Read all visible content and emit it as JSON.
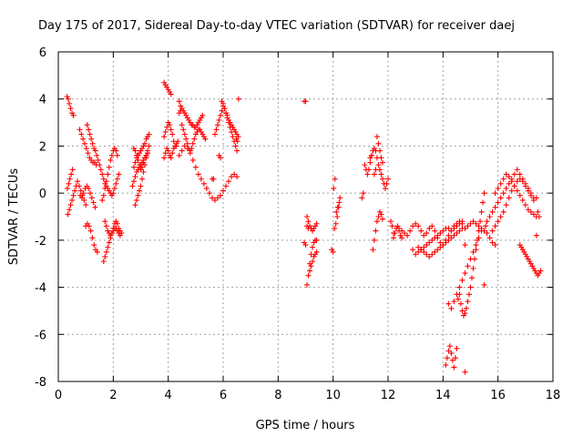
{
  "chart_data": {
    "type": "scatter",
    "title": "Day 175 of 2017, Sidereal Day-to-day VTEC variation (SDTVAR) for receiver daej",
    "xlabel": "GPS time / hours",
    "ylabel": "SDTVAR / TECUs",
    "xlim": [
      0,
      18
    ],
    "ylim": [
      -8,
      6
    ],
    "xticks": [
      0,
      2,
      4,
      6,
      8,
      10,
      12,
      14,
      16,
      18
    ],
    "yticks": [
      -8,
      -6,
      -4,
      -2,
      0,
      2,
      4,
      6
    ],
    "grid": true,
    "marker": "+",
    "color": "#ff0000",
    "series": [
      {
        "name": "SDTVAR",
        "x": [
          0.32,
          0.36,
          0.4,
          0.45,
          0.5,
          0.55,
          0.33,
          0.38,
          0.42,
          0.47,
          0.52,
          0.35,
          0.4,
          0.45,
          0.5,
          0.55,
          0.6,
          0.65,
          0.7,
          0.76,
          0.82,
          0.88,
          0.94,
          1.0,
          0.78,
          0.84,
          0.9,
          0.96,
          1.02,
          1.08,
          1.14,
          1.2,
          1.26,
          1.32,
          1.38,
          0.8,
          0.86,
          0.92,
          0.98,
          1.04,
          1.1,
          1.16,
          1.22,
          1.28,
          1.34,
          1.0,
          1.06,
          1.12,
          1.18,
          1.24,
          1.3,
          1.36,
          1.42,
          1.05,
          1.1,
          1.15,
          1.2,
          1.25,
          1.3,
          1.35,
          1.4,
          1.45,
          1.5,
          1.55,
          1.6,
          1.65,
          1.7,
          1.75,
          1.8,
          1.85,
          1.9,
          1.95,
          2.0,
          2.05,
          2.1,
          2.15,
          2.2,
          1.6,
          1.65,
          1.7,
          1.75,
          1.8,
          1.85,
          1.9,
          1.95,
          2.0,
          2.05,
          2.1,
          2.15,
          1.7,
          1.75,
          1.8,
          1.85,
          1.9,
          1.95,
          2.0,
          2.05,
          2.1,
          2.15,
          2.2,
          2.25,
          2.3,
          1.65,
          1.7,
          1.75,
          1.8,
          1.85,
          1.9,
          1.95,
          2.0,
          2.05,
          2.1,
          2.15,
          2.2,
          2.25,
          2.75,
          2.8,
          2.85,
          2.9,
          2.95,
          3.0,
          3.05,
          3.1,
          3.15,
          3.2,
          3.25,
          3.3,
          2.7,
          2.75,
          2.8,
          2.85,
          2.9,
          2.95,
          3.0,
          3.05,
          3.1,
          3.15,
          3.2,
          3.25,
          2.8,
          2.85,
          2.9,
          2.95,
          3.0,
          3.05,
          3.1,
          3.15,
          3.2,
          3.25,
          3.3,
          2.75,
          2.8,
          2.85,
          2.9,
          2.95,
          3.0,
          3.05,
          3.1,
          3.15,
          3.2,
          3.25,
          3.85,
          3.9,
          3.95,
          4.0,
          4.05,
          4.1,
          3.85,
          3.9,
          3.95,
          4.0,
          4.05,
          4.1,
          4.15,
          3.85,
          3.9,
          3.95,
          4.0,
          4.05,
          4.1,
          4.15,
          4.2,
          4.25,
          4.3,
          4.35,
          4.4,
          4.45,
          4.5,
          4.55,
          4.6,
          4.65,
          4.7,
          4.75,
          4.8,
          4.85,
          4.9,
          4.95,
          5.0,
          5.05,
          5.1,
          5.15,
          5.2,
          5.25,
          4.4,
          4.45,
          4.5,
          4.55,
          4.6,
          4.65,
          4.7,
          4.75,
          4.8,
          4.85,
          4.9,
          4.95,
          5.0,
          5.05,
          5.1,
          5.15,
          5.2,
          5.25,
          5.3,
          5.35,
          4.2,
          4.3,
          4.4,
          4.5,
          4.6,
          4.7,
          4.8,
          4.9,
          5.0,
          5.1,
          5.2,
          5.3,
          5.4,
          5.5,
          5.6,
          5.7,
          5.8,
          5.9,
          6.0,
          6.1,
          6.2,
          6.3,
          6.4,
          6.5,
          5.6,
          5.65,
          5.7,
          5.75,
          5.8,
          5.85,
          5.9,
          5.95,
          6.0,
          6.05,
          6.1,
          6.15,
          6.2,
          6.25,
          6.3,
          6.35,
          6.4,
          6.45,
          6.5,
          5.85,
          5.9,
          5.95,
          6.0,
          6.05,
          6.1,
          6.15,
          6.2,
          6.25,
          6.3,
          6.35,
          6.4,
          6.45,
          6.5,
          6.55,
          6.48,
          6.52,
          6.56,
          8.95,
          9.0,
          9.05,
          9.1,
          9.15,
          9.2,
          9.25,
          9.3,
          9.35,
          9.4,
          8.95,
          9.0,
          9.05,
          9.1,
          9.15,
          9.2,
          9.25,
          9.3,
          9.35,
          9.4,
          9.05,
          9.1,
          9.15,
          9.2,
          9.25,
          9.3,
          9.35,
          9.4,
          9.95,
          10.0,
          10.05,
          10.1,
          10.15,
          10.2,
          10.25,
          10.02,
          10.07,
          10.12,
          10.17,
          10.22,
          11.05,
          11.1,
          11.15,
          11.2,
          11.25,
          11.3,
          11.35,
          11.4,
          11.45,
          11.5,
          11.55,
          11.6,
          11.65,
          11.7,
          11.75,
          11.8,
          11.85,
          11.9,
          11.95,
          12.0,
          11.5,
          11.55,
          11.6,
          11.65,
          11.7,
          11.75,
          11.8,
          11.35,
          11.4,
          11.45,
          11.5,
          11.55,
          11.6,
          11.65,
          11.7,
          11.75,
          11.8,
          12.1,
          12.15,
          12.2,
          12.25,
          12.3,
          12.35,
          12.4,
          12.45,
          12.5,
          12.2,
          12.3,
          12.4,
          12.5,
          12.6,
          12.7,
          12.8,
          12.9,
          13.0,
          13.1,
          13.2,
          13.3,
          13.4,
          13.5,
          13.6,
          13.7,
          13.8,
          13.9,
          14.0,
          14.1,
          14.2,
          14.3,
          14.4,
          14.5,
          14.6,
          14.7,
          14.8,
          14.9,
          15.0,
          15.1,
          15.2,
          15.3,
          15.4,
          15.5,
          15.6,
          15.7,
          15.8,
          15.9,
          12.9,
          13.0,
          13.1,
          13.2,
          13.3,
          13.4,
          13.5,
          13.6,
          13.7,
          13.8,
          13.9,
          14.0,
          14.1,
          14.2,
          14.3,
          14.4,
          14.5,
          14.6,
          14.7,
          14.8,
          13.1,
          13.2,
          13.3,
          13.4,
          13.5,
          13.6,
          13.7,
          13.8,
          13.9,
          14.0,
          14.1,
          14.2,
          14.3,
          14.4,
          14.5,
          14.6,
          14.7,
          14.8,
          14.1,
          14.15,
          14.2,
          14.25,
          14.3,
          14.35,
          14.4,
          14.45,
          14.5,
          14.55,
          14.2,
          14.3,
          14.4,
          14.5,
          14.6,
          14.7,
          14.8,
          14.9,
          15.0,
          15.1,
          15.2,
          15.3,
          15.4,
          15.5,
          14.6,
          14.65,
          14.7,
          14.75,
          14.8,
          14.85,
          14.9,
          14.95,
          15.0,
          15.05,
          15.1,
          15.15,
          15.2,
          15.25,
          15.3,
          15.35,
          15.4,
          15.45,
          15.5,
          15.55,
          15.6,
          15.7,
          15.8,
          15.9,
          16.0,
          16.1,
          16.2,
          16.3,
          16.4,
          16.5,
          16.6,
          16.7,
          16.8,
          16.9,
          17.0,
          17.1,
          17.2,
          17.3,
          17.4,
          15.8,
          15.9,
          16.0,
          16.1,
          16.2,
          16.3,
          16.4,
          16.5,
          16.6,
          16.7,
          16.8,
          16.9,
          17.0,
          17.1,
          17.2,
          17.3,
          17.4,
          15.9,
          16.0,
          16.1,
          16.2,
          16.3,
          16.4,
          16.5,
          16.6,
          16.7,
          16.8,
          16.9,
          17.0,
          17.1,
          17.2,
          17.3,
          17.4,
          16.8,
          16.85,
          16.9,
          16.95,
          17.0,
          17.05,
          17.1,
          17.15,
          17.2,
          17.25,
          17.3,
          17.35,
          17.4,
          17.45,
          17.5,
          17.55,
          17.45,
          17.5
        ],
        "y": [
          4.1,
          4.0,
          3.8,
          3.6,
          3.4,
          3.3,
          0.2,
          0.4,
          0.6,
          0.8,
          1.0,
          -0.9,
          -0.7,
          -0.5,
          -0.3,
          -0.1,
          0.1,
          0.3,
          0.5,
          0.3,
          0.1,
          -0.1,
          -0.3,
          -0.5,
          2.7,
          2.5,
          2.3,
          2.1,
          1.9,
          1.7,
          1.5,
          1.4,
          1.3,
          1.3,
          1.2,
          -0.1,
          -0.2,
          0.0,
          0.2,
          0.3,
          0.2,
          0.0,
          -0.2,
          -0.4,
          -0.6,
          -1.4,
          -1.3,
          -1.4,
          -1.6,
          -1.9,
          -2.2,
          -2.4,
          -2.5,
          2.9,
          2.7,
          2.5,
          2.3,
          2.1,
          1.9,
          1.8,
          1.6,
          1.4,
          1.2,
          1.0,
          0.8,
          0.6,
          0.4,
          0.3,
          0.2,
          0.1,
          0.0,
          -0.1,
          0.0,
          0.2,
          0.4,
          0.6,
          0.8,
          -0.3,
          -0.1,
          0.2,
          0.5,
          0.8,
          1.1,
          1.4,
          1.6,
          1.8,
          1.9,
          1.8,
          1.6,
          -1.2,
          -1.4,
          -1.6,
          -1.7,
          -1.8,
          -1.7,
          -1.6,
          -1.5,
          -1.5,
          -1.6,
          -1.7,
          -1.8,
          -1.7,
          -2.9,
          -2.7,
          -2.5,
          -2.3,
          -2.1,
          -1.9,
          -1.7,
          -1.5,
          -1.3,
          -1.2,
          -1.3,
          -1.5,
          -1.6,
          1.1,
          1.3,
          1.5,
          1.6,
          1.7,
          1.8,
          1.9,
          2.0,
          2.1,
          2.3,
          2.4,
          2.5,
          0.3,
          0.5,
          0.7,
          0.9,
          1.0,
          1.1,
          1.2,
          1.3,
          1.4,
          1.5,
          1.6,
          1.7,
          -0.5,
          -0.3,
          -0.1,
          0.1,
          0.3,
          0.6,
          0.9,
          1.2,
          1.5,
          1.8,
          2.0,
          1.9,
          1.8,
          1.6,
          1.4,
          1.2,
          1.0,
          1.1,
          1.3,
          1.5,
          1.6,
          1.7,
          4.7,
          4.6,
          4.5,
          4.4,
          4.3,
          4.2,
          2.4,
          2.6,
          2.8,
          3.0,
          2.9,
          2.7,
          2.5,
          1.5,
          1.7,
          1.9,
          1.8,
          1.6,
          1.5,
          1.7,
          1.9,
          2.0,
          2.1,
          2.2,
          3.9,
          3.7,
          3.6,
          3.5,
          3.4,
          3.3,
          3.2,
          3.1,
          3.0,
          2.9,
          2.9,
          2.8,
          2.8,
          2.9,
          3.0,
          3.1,
          3.2,
          3.3,
          3.4,
          3.5,
          2.9,
          2.7,
          2.5,
          2.3,
          2.1,
          1.9,
          1.8,
          1.9,
          2.1,
          2.3,
          2.5,
          2.6,
          2.7,
          2.7,
          2.6,
          2.5,
          2.4,
          2.3,
          2.2,
          2.0,
          1.6,
          1.8,
          2.0,
          1.9,
          1.7,
          1.4,
          1.1,
          0.8,
          0.6,
          0.4,
          0.2,
          0.0,
          -0.2,
          -0.3,
          -0.2,
          -0.1,
          0.1,
          0.3,
          0.5,
          0.7,
          0.8,
          0.7,
          0.6,
          0.6,
          2.5,
          2.7,
          2.9,
          3.1,
          3.3,
          3.5,
          3.7,
          3.6,
          3.4,
          3.2,
          3.0,
          2.8,
          2.6,
          2.4,
          2.2,
          2.0,
          1.8,
          1.6,
          1.5,
          3.9,
          3.8,
          3.6,
          3.4,
          3.3,
          3.1,
          3.0,
          2.9,
          2.8,
          2.7,
          2.6,
          2.5,
          2.4,
          2.3,
          2.2,
          4.0,
          3.9,
          3.9,
          -3.9,
          -3.5,
          -3.0,
          -2.6,
          -2.3,
          -2.1,
          -2.0,
          -2.0,
          -2.1,
          -2.2,
          -1.0,
          -1.2,
          -1.4,
          -1.5,
          -1.6,
          -1.5,
          -1.4,
          -1.3,
          -1.4,
          -1.5,
          -3.3,
          -3.1,
          -2.9,
          -2.7,
          -2.6,
          -2.5,
          -2.4,
          -2.5,
          -1.5,
          -1.3,
          -1.0,
          -0.6,
          -0.2,
          0.2,
          0.6,
          -0.8,
          -0.6,
          -0.4,
          -0.2,
          0.0,
          1.2,
          1.0,
          0.8,
          1.0,
          1.3,
          1.6,
          1.8,
          1.9,
          1.8,
          1.5,
          1.2,
          1.0,
          0.8,
          0.6,
          0.4,
          0.2,
          0.4,
          0.6,
          0.8,
          1.0,
          2.4,
          2.1,
          1.8,
          1.5,
          1.3,
          1.5,
          1.6,
          -2.4,
          -2.0,
          -1.6,
          -1.2,
          -1.0,
          -0.8,
          -0.9,
          -1.1,
          -1.2,
          -1.4,
          -1.9,
          -1.7,
          -1.5,
          -1.4,
          -1.6,
          -1.8,
          -1.9,
          -1.7,
          -1.5,
          -1.5,
          -1.6,
          -1.7,
          -1.8,
          -1.6,
          -1.4,
          -1.3,
          -1.4,
          -1.6,
          -1.8,
          -1.7,
          -1.5,
          -1.4,
          -1.6,
          -1.9,
          -2.1,
          -2.2,
          -2.0,
          -1.8,
          -1.6,
          -1.4,
          -1.3,
          -1.2,
          -1.3,
          -1.5,
          -1.4,
          -1.3,
          -1.2,
          -1.3,
          -1.4,
          -1.5,
          -1.6,
          -1.7,
          -1.9,
          -2.1,
          -2.2,
          -2.4,
          -2.6,
          -2.5,
          -2.4,
          -2.3,
          -2.2,
          -2.1,
          -2.0,
          -1.9,
          -1.8,
          -1.7,
          -1.6,
          -1.5,
          -1.5,
          -1.6,
          -1.5,
          -1.4,
          -1.3,
          -1.2,
          -2.2,
          -2.3,
          -2.4,
          -2.5,
          -2.6,
          -2.7,
          -2.6,
          -2.5,
          -2.4,
          -2.3,
          -2.2,
          -2.1,
          -2.0,
          -1.9,
          -1.8,
          -1.7,
          -1.6,
          -1.5,
          -7.6,
          -7.3,
          -7.0,
          -6.7,
          -6.5,
          -6.8,
          -7.1,
          -7.4,
          -7.0,
          -6.6,
          -4.5,
          -4.7,
          -4.9,
          -4.6,
          -4.3,
          -4.0,
          -3.7,
          -3.4,
          -3.1,
          -2.8,
          -2.5,
          -2.2,
          -1.9,
          -1.6,
          -3.9,
          -4.3,
          -4.7,
          -5.0,
          -5.2,
          -5.1,
          -4.9,
          -4.6,
          -4.3,
          -4.0,
          -3.6,
          -3.2,
          -2.8,
          -2.4,
          -2.0,
          -1.6,
          -1.2,
          -0.8,
          -0.4,
          0.0,
          -1.4,
          -1.2,
          -1.0,
          -0.8,
          -0.6,
          -0.4,
          -0.2,
          0.0,
          0.2,
          0.4,
          0.6,
          0.8,
          1.0,
          0.8,
          0.6,
          0.4,
          0.2,
          0.0,
          -0.2,
          -1.8,
          -1.6,
          -1.4,
          -1.2,
          -1.0,
          -0.8,
          -0.5,
          -0.2,
          0.1,
          0.3,
          0.5,
          0.6,
          0.5,
          0.3,
          0.1,
          -0.1,
          -0.3,
          -0.2,
          0.0,
          0.2,
          0.4,
          0.6,
          0.8,
          0.7,
          0.5,
          0.3,
          0.1,
          -0.1,
          -0.3,
          -0.5,
          -0.7,
          -0.8,
          -0.9,
          -1.0,
          -2.2,
          -2.3,
          -2.4,
          -2.5,
          -2.6,
          -2.7,
          -2.8,
          -2.9,
          -3.0,
          -3.1,
          -3.2,
          -3.3,
          -3.4,
          -3.5,
          -3.4,
          -3.3,
          -0.8,
          -1.0
        ]
      }
    ]
  }
}
